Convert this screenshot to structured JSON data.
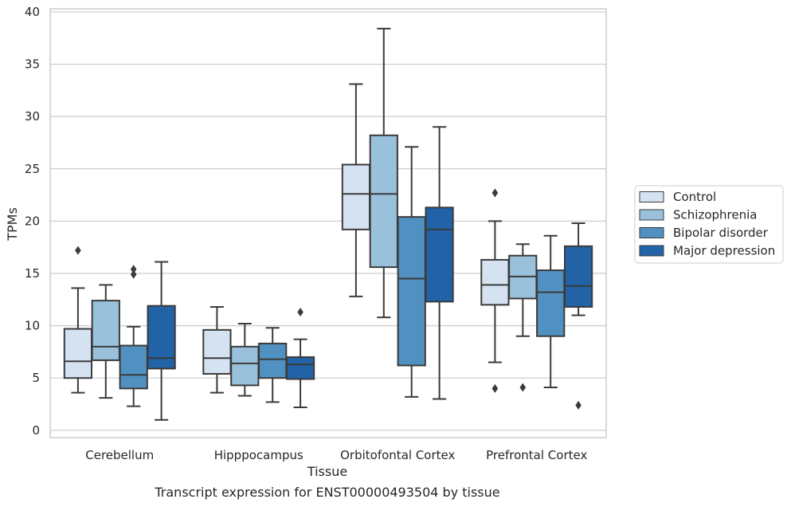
{
  "chart_data": {
    "type": "box",
    "xlabel": "Tissue",
    "ylabel": "TPMs",
    "caption": "Transcript expression for ENST00000493504 by tissue",
    "ylim": [
      -0.7,
      40.3
    ],
    "yticks": [
      0,
      5,
      10,
      15,
      20,
      25,
      30,
      35,
      40
    ],
    "grid": "horizontal",
    "legend_position": "right",
    "categories": [
      "Cerebellum",
      "Hipppocampus",
      "Orbitofontal Cortex",
      "Prefrontal Cortex"
    ],
    "series": [
      {
        "name": "Control",
        "color": "#d4e2f1",
        "boxes": [
          {
            "whislo": 3.6,
            "q1": 5.0,
            "med": 6.6,
            "q3": 9.7,
            "whishi": 13.6,
            "fliers": [
              17.2
            ]
          },
          {
            "whislo": 3.6,
            "q1": 5.4,
            "med": 6.9,
            "q3": 9.6,
            "whishi": 11.8,
            "fliers": []
          },
          {
            "whislo": 12.8,
            "q1": 19.2,
            "med": 22.6,
            "q3": 25.4,
            "whishi": 33.1,
            "fliers": []
          },
          {
            "whislo": 6.5,
            "q1": 12.0,
            "med": 13.9,
            "q3": 16.3,
            "whishi": 20.0,
            "fliers": [
              22.7,
              4.0
            ]
          }
        ]
      },
      {
        "name": "Schizophrenia",
        "color": "#9ac1dc",
        "boxes": [
          {
            "whislo": 3.1,
            "q1": 6.7,
            "med": 8.0,
            "q3": 12.4,
            "whishi": 13.9,
            "fliers": []
          },
          {
            "whislo": 3.3,
            "q1": 4.3,
            "med": 6.4,
            "q3": 8.0,
            "whishi": 10.2,
            "fliers": []
          },
          {
            "whislo": 10.8,
            "q1": 15.6,
            "med": 22.6,
            "q3": 28.2,
            "whishi": 38.4,
            "fliers": []
          },
          {
            "whislo": 9.0,
            "q1": 12.6,
            "med": 14.7,
            "q3": 16.7,
            "whishi": 17.8,
            "fliers": [
              4.1
            ]
          }
        ]
      },
      {
        "name": "Bipolar disorder",
        "color": "#5191c2",
        "boxes": [
          {
            "whislo": 2.3,
            "q1": 4.0,
            "med": 5.3,
            "q3": 8.1,
            "whishi": 9.9,
            "fliers": [
              14.9,
              15.4
            ]
          },
          {
            "whislo": 2.7,
            "q1": 5.0,
            "med": 6.8,
            "q3": 8.3,
            "whishi": 9.8,
            "fliers": []
          },
          {
            "whislo": 3.2,
            "q1": 6.2,
            "med": 14.5,
            "q3": 20.4,
            "whishi": 27.1,
            "fliers": []
          },
          {
            "whislo": 4.1,
            "q1": 9.0,
            "med": 13.2,
            "q3": 15.3,
            "whishi": 18.6,
            "fliers": []
          }
        ]
      },
      {
        "name": "Major depression",
        "color": "#2163a6",
        "boxes": [
          {
            "whislo": 1.0,
            "q1": 5.9,
            "med": 6.9,
            "q3": 11.9,
            "whishi": 16.1,
            "fliers": []
          },
          {
            "whislo": 2.2,
            "q1": 4.9,
            "med": 6.3,
            "q3": 7.0,
            "whishi": 8.7,
            "fliers": [
              11.3
            ]
          },
          {
            "whislo": 3.0,
            "q1": 12.3,
            "med": 19.2,
            "q3": 21.3,
            "whishi": 29.0,
            "fliers": []
          },
          {
            "whislo": 11.0,
            "q1": 11.8,
            "med": 13.8,
            "q3": 17.6,
            "whishi": 19.8,
            "fliers": [
              2.4
            ]
          }
        ]
      }
    ]
  }
}
